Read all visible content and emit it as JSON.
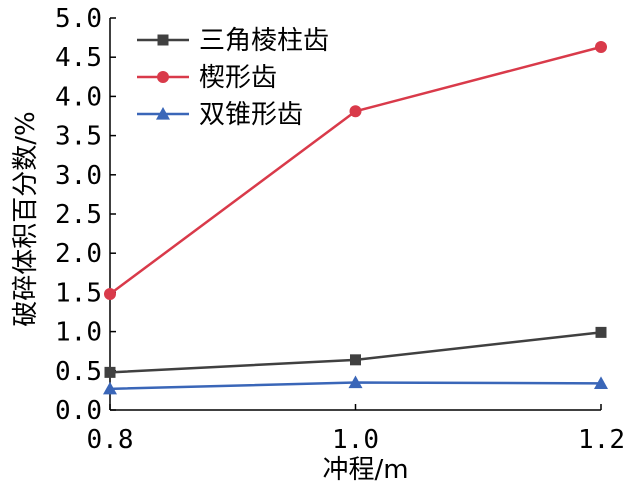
{
  "chart_data": {
    "type": "line",
    "xlabel": "冲程/m",
    "ylabel": "破碎体积百分数/%",
    "x": [
      0.8,
      1.0,
      1.2
    ],
    "x_ticks": [
      "0.8",
      "1.0",
      "1.2"
    ],
    "y_ticks": [
      "0.0",
      "0.5",
      "1.0",
      "1.5",
      "2.0",
      "2.5",
      "3.0",
      "3.5",
      "4.0",
      "4.5",
      "5.0"
    ],
    "xlim": [
      0.8,
      1.2
    ],
    "ylim": [
      0,
      5.0
    ],
    "grid": false,
    "legend_position": "top-left",
    "series": [
      {
        "name": "三角棱柱齿",
        "values": [
          0.48,
          0.64,
          0.99
        ],
        "color": "#404040",
        "marker": "square"
      },
      {
        "name": "楔形齿",
        "values": [
          1.48,
          3.81,
          4.63
        ],
        "color": "#d93a4a",
        "marker": "circle"
      },
      {
        "name": "双锥形齿",
        "values": [
          0.27,
          0.35,
          0.34
        ],
        "color": "#3a66b8",
        "marker": "triangle"
      }
    ]
  }
}
